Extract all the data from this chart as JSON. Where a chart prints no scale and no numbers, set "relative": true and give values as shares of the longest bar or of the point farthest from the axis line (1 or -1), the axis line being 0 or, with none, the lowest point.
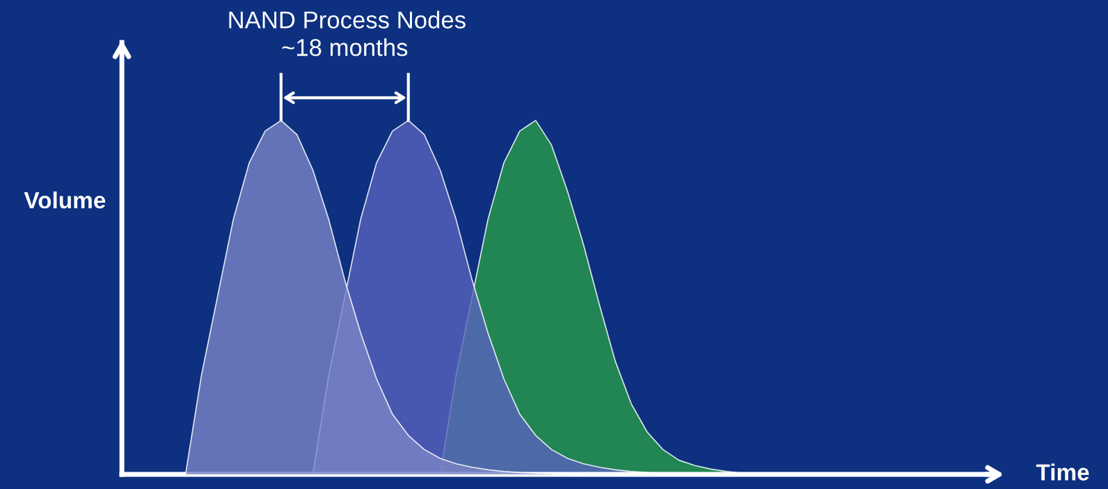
{
  "chart_data": {
    "type": "area",
    "relative": true,
    "title": "NAND Process Nodes",
    "xlabel": "Time",
    "ylabel": "Volume",
    "annotations": [
      "~18 months"
    ],
    "categories": [
      null,
      null,
      null,
      null,
      null,
      null,
      null,
      null,
      null,
      null,
      null,
      null,
      null,
      null,
      null,
      null,
      null,
      null,
      null,
      null,
      null,
      null,
      null,
      null,
      null,
      null,
      null,
      null,
      null,
      null,
      null,
      null,
      null,
      null,
      null,
      null,
      null,
      null,
      null,
      null,
      null,
      null,
      null,
      null,
      null,
      null,
      null,
      null,
      null,
      null,
      null,
      null,
      null,
      null,
      null,
      null
    ],
    "series": [
      {
        "color": "#7a84c6",
        "values": [
          null,
          null,
          null,
          null,
          0,
          0.28,
          0.5,
          0.72,
          0.88,
          0.97,
          1,
          0.96,
          0.86,
          0.72,
          0.55,
          0.4,
          0.27,
          0.17,
          0.11,
          0.07,
          0.045,
          0.03,
          0.02,
          0.013,
          0.008,
          0.005,
          0.003,
          0.002,
          0.001,
          0,
          null,
          null,
          null,
          null,
          null,
          null,
          null,
          null,
          null,
          null,
          null,
          null,
          null,
          null,
          null,
          null,
          null,
          null,
          null,
          null,
          null,
          null,
          null,
          null,
          null,
          null
        ]
      },
      {
        "color": "#5763bb",
        "values": [
          null,
          null,
          null,
          null,
          null,
          null,
          null,
          null,
          null,
          null,
          null,
          null,
          0,
          0.28,
          0.5,
          0.72,
          0.88,
          0.97,
          1,
          0.96,
          0.86,
          0.72,
          0.55,
          0.4,
          0.27,
          0.17,
          0.11,
          0.07,
          0.045,
          0.03,
          0.02,
          0.013,
          0.008,
          0.005,
          0.003,
          0.002,
          0.001,
          0,
          null,
          null,
          null,
          null,
          null,
          null,
          null,
          null,
          null,
          null,
          null,
          null,
          null,
          null,
          null,
          null,
          null,
          null
        ]
      },
      {
        "color": "#279b48",
        "values": [
          null,
          null,
          null,
          null,
          null,
          null,
          null,
          null,
          null,
          null,
          null,
          null,
          null,
          null,
          null,
          null,
          null,
          null,
          null,
          null,
          0,
          0.28,
          0.5,
          0.72,
          0.88,
          0.97,
          1,
          0.93,
          0.8,
          0.65,
          0.48,
          0.32,
          0.2,
          0.12,
          0.07,
          0.04,
          0.025,
          0.015,
          0.008,
          0.003,
          0.001,
          0,
          null,
          null,
          null,
          null,
          null,
          null,
          null,
          null,
          null,
          null,
          null,
          null,
          null,
          null
        ]
      }
    ]
  }
}
